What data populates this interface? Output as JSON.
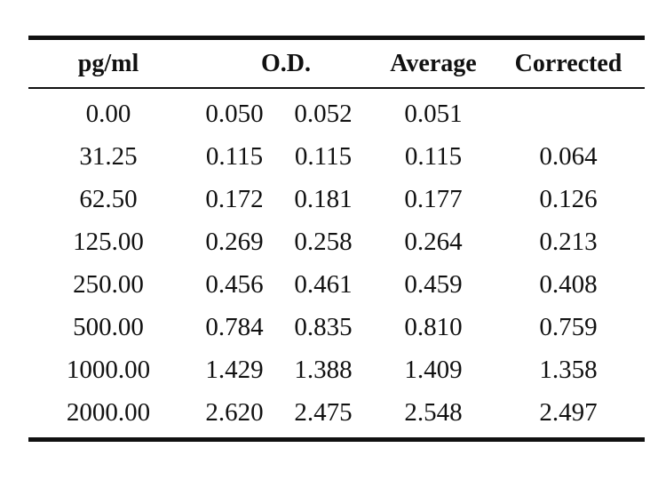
{
  "table": {
    "headers": {
      "concentration": "pg/ml",
      "od": "O.D.",
      "average": "Average",
      "corrected": "Corrected"
    },
    "rows": [
      {
        "concentration": "0.00",
        "od1": "0.050",
        "od2": "0.052",
        "average": "0.051",
        "corrected": ""
      },
      {
        "concentration": "31.25",
        "od1": "0.115",
        "od2": "0.115",
        "average": "0.115",
        "corrected": "0.064"
      },
      {
        "concentration": "62.50",
        "od1": "0.172",
        "od2": "0.181",
        "average": "0.177",
        "corrected": "0.126"
      },
      {
        "concentration": "125.00",
        "od1": "0.269",
        "od2": "0.258",
        "average": "0.264",
        "corrected": "0.213"
      },
      {
        "concentration": "250.00",
        "od1": "0.456",
        "od2": "0.461",
        "average": "0.459",
        "corrected": "0.408"
      },
      {
        "concentration": "500.00",
        "od1": "0.784",
        "od2": "0.835",
        "average": "0.810",
        "corrected": "0.759"
      },
      {
        "concentration": "1000.00",
        "od1": "1.429",
        "od2": "1.388",
        "average": "1.409",
        "corrected": "1.358"
      },
      {
        "concentration": "2000.00",
        "od1": "2.620",
        "od2": "2.475",
        "average": "2.548",
        "corrected": "2.497"
      }
    ]
  }
}
